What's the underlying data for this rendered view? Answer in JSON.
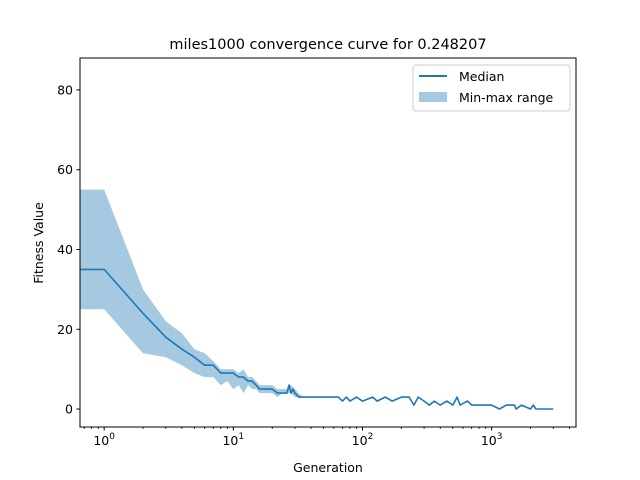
{
  "chart_data": {
    "type": "line",
    "title": "miles1000 convergence curve for 0.248207",
    "xlabel": "Generation",
    "ylabel": "Fitness Value",
    "xscale": "log",
    "xlim": [
      0.65,
      4500
    ],
    "ylim": [
      -4.5,
      88
    ],
    "grid": false,
    "legend_position": "top-right",
    "x_ticks": [
      {
        "value": 1,
        "base": "10",
        "exp": "0"
      },
      {
        "value": 10,
        "base": "10",
        "exp": "1"
      },
      {
        "value": 100,
        "base": "10",
        "exp": "2"
      },
      {
        "value": 1000,
        "base": "10",
        "exp": "3"
      }
    ],
    "y_ticks": [
      0,
      20,
      40,
      60,
      80
    ],
    "series": [
      {
        "name": "Median",
        "kind": "line",
        "color": "#1f77b4",
        "points": [
          [
            0.6,
            35
          ],
          [
            1,
            35
          ],
          [
            2,
            24
          ],
          [
            3,
            18
          ],
          [
            4,
            15
          ],
          [
            5,
            13
          ],
          [
            6,
            11
          ],
          [
            7,
            11
          ],
          [
            8,
            9
          ],
          [
            10,
            9
          ],
          [
            11,
            8
          ],
          [
            12,
            8
          ],
          [
            13,
            7
          ],
          [
            14,
            7
          ],
          [
            15,
            6
          ],
          [
            16,
            5
          ],
          [
            18,
            5
          ],
          [
            20,
            5
          ],
          [
            22,
            4
          ],
          [
            24,
            4
          ],
          [
            26,
            4
          ],
          [
            27,
            6
          ],
          [
            28,
            4
          ],
          [
            29,
            5
          ],
          [
            30,
            4
          ],
          [
            32,
            3
          ],
          [
            40,
            3
          ],
          [
            50,
            3
          ],
          [
            65,
            3
          ],
          [
            70,
            2
          ],
          [
            75,
            3
          ],
          [
            80,
            2
          ],
          [
            90,
            3
          ],
          [
            100,
            2
          ],
          [
            120,
            3
          ],
          [
            130,
            2
          ],
          [
            150,
            3
          ],
          [
            170,
            2
          ],
          [
            200,
            3
          ],
          [
            230,
            3
          ],
          [
            250,
            1
          ],
          [
            270,
            3
          ],
          [
            300,
            2
          ],
          [
            330,
            1
          ],
          [
            360,
            2
          ],
          [
            400,
            1
          ],
          [
            450,
            2
          ],
          [
            500,
            1
          ],
          [
            540,
            3
          ],
          [
            570,
            1
          ],
          [
            650,
            2
          ],
          [
            700,
            1
          ],
          [
            800,
            1
          ],
          [
            1000,
            1
          ],
          [
            1150,
            0
          ],
          [
            1300,
            1
          ],
          [
            1500,
            1
          ],
          [
            1550,
            0
          ],
          [
            1700,
            1
          ],
          [
            2000,
            0
          ],
          [
            2100,
            1
          ],
          [
            2200,
            0
          ],
          [
            3000,
            0
          ]
        ]
      },
      {
        "name": "Min-max range",
        "kind": "band",
        "color": "#1f77b4",
        "opacity": 0.4,
        "points": [
          [
            0.6,
            25,
            55
          ],
          [
            1,
            25,
            55
          ],
          [
            2,
            14,
            30
          ],
          [
            3,
            13,
            22
          ],
          [
            4,
            11,
            19
          ],
          [
            5,
            9,
            15
          ],
          [
            6,
            8,
            14
          ],
          [
            7,
            8,
            12
          ],
          [
            8,
            6,
            10
          ],
          [
            9,
            7,
            10
          ],
          [
            10,
            5,
            10
          ],
          [
            11,
            6,
            9
          ],
          [
            12,
            4,
            10
          ],
          [
            13,
            6,
            8
          ],
          [
            14,
            5,
            8
          ],
          [
            15,
            5,
            7
          ],
          [
            16,
            4,
            6
          ],
          [
            18,
            4,
            6
          ],
          [
            20,
            4,
            6
          ],
          [
            22,
            3,
            5
          ],
          [
            24,
            4,
            5
          ],
          [
            26,
            4,
            5
          ],
          [
            27,
            4,
            6
          ],
          [
            28,
            4,
            6
          ],
          [
            30,
            3,
            5
          ],
          [
            32,
            3,
            4
          ],
          [
            35,
            3,
            3
          ],
          [
            3000,
            0,
            0
          ]
        ]
      }
    ]
  }
}
